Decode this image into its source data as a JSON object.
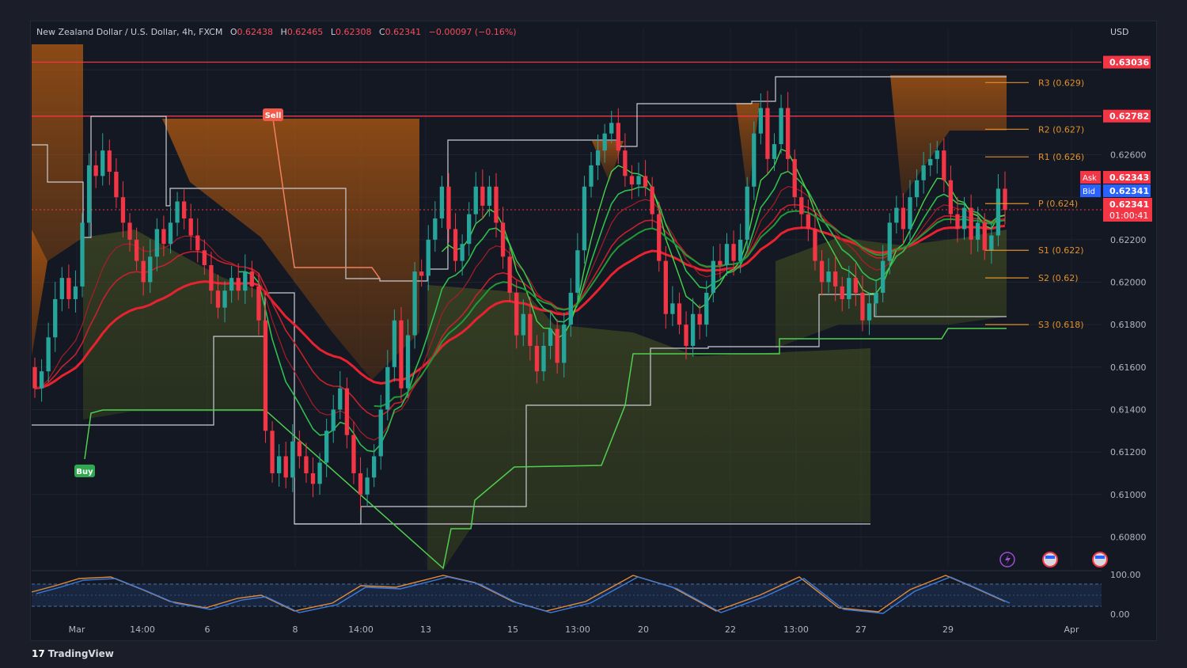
{
  "header": {
    "symbol": "New Zealand Dollar / U.S. Dollar, 4h, FXCM",
    "open_label": "O",
    "open": "0.62438",
    "high_label": "H",
    "high": "0.62465",
    "low_label": "L",
    "low": "0.62308",
    "close_label": "C",
    "close": "0.62341",
    "change": "−0.00097 (−0.16%)"
  },
  "currency": "USD",
  "brand": "TradingView",
  "colors": {
    "up": "#26a69a",
    "down": "#f23645",
    "resistance": "#f23645",
    "pivot": "#e0902a",
    "green": "#2fbf4f"
  },
  "chart_data": {
    "type": "candlestick",
    "ylim": [
      0.6066,
      0.6312
    ],
    "price_ticks": [
      "0.60800",
      "0.61000",
      "0.61200",
      "0.61400",
      "0.61600",
      "0.61800",
      "0.62000",
      "0.62200",
      "0.62600"
    ],
    "x_ticks": [
      "Mar",
      "14:00",
      "6",
      "8",
      "14:00",
      "13",
      "15",
      "13:00",
      "20",
      "22",
      "13:00",
      "27",
      "29",
      "Apr"
    ],
    "price_tags": [
      {
        "label": "0.63036",
        "value": 0.63036,
        "color": "#f23645"
      },
      {
        "label": "0.62782",
        "value": 0.62782,
        "color": "#f23645"
      },
      {
        "label": "Ask",
        "text": "0.62343",
        "color": "#f23645"
      },
      {
        "label": "Bid",
        "text": "0.62341",
        "color": "#2962ff"
      },
      {
        "label": "0.62341",
        "text": "01:00:41",
        "color": "#f23645"
      }
    ],
    "horizontal_lines": [
      {
        "value": 0.63036,
        "color": "#f23645"
      },
      {
        "value": 0.62782,
        "color": "#f23645"
      }
    ],
    "pivots": [
      {
        "label": "R3 (0.629)",
        "value": 0.6294
      },
      {
        "label": "R2 (0.627)",
        "value": 0.6272
      },
      {
        "label": "R1 (0.626)",
        "value": 0.6259
      },
      {
        "label": "P (0.624)",
        "value": 0.6237
      },
      {
        "label": "S1 (0.622)",
        "value": 0.6215
      },
      {
        "label": "S2 (0.62)",
        "value": 0.6202
      },
      {
        "label": "S3 (0.618)",
        "value": 0.618
      }
    ],
    "signals": [
      {
        "label": "Buy",
        "type": "buy"
      },
      {
        "label": "Sell",
        "type": "sell"
      }
    ],
    "candles": [
      [
        0.616,
        0.615
      ],
      [
        0.615,
        0.6158
      ],
      [
        0.6158,
        0.6174
      ],
      [
        0.6174,
        0.6192
      ],
      [
        0.6192,
        0.6202
      ],
      [
        0.6202,
        0.6192
      ],
      [
        0.6192,
        0.6198
      ],
      [
        0.6198,
        0.6228
      ],
      [
        0.6228,
        0.6255
      ],
      [
        0.6255,
        0.625
      ],
      [
        0.625,
        0.6262
      ],
      [
        0.6262,
        0.6252
      ],
      [
        0.6252,
        0.624
      ],
      [
        0.624,
        0.6228
      ],
      [
        0.6228,
        0.622
      ],
      [
        0.622,
        0.621
      ],
      [
        0.621,
        0.62
      ],
      [
        0.62,
        0.6212
      ],
      [
        0.6212,
        0.6225
      ],
      [
        0.6225,
        0.6218
      ],
      [
        0.6218,
        0.6228
      ],
      [
        0.6228,
        0.6238
      ],
      [
        0.6238,
        0.623
      ],
      [
        0.623,
        0.6222
      ],
      [
        0.6222,
        0.6215
      ],
      [
        0.6215,
        0.6208
      ],
      [
        0.6208,
        0.6196
      ],
      [
        0.6196,
        0.6188
      ],
      [
        0.6188,
        0.6196
      ],
      [
        0.6196,
        0.6202
      ],
      [
        0.6202,
        0.6196
      ],
      [
        0.6196,
        0.6205
      ],
      [
        0.6205,
        0.6198
      ],
      [
        0.6198,
        0.6182
      ],
      [
        0.6182,
        0.613
      ],
      [
        0.613,
        0.611
      ],
      [
        0.611,
        0.6118
      ],
      [
        0.6118,
        0.6108
      ],
      [
        0.6108,
        0.6125
      ],
      [
        0.6125,
        0.6118
      ],
      [
        0.6118,
        0.611
      ],
      [
        0.611,
        0.6105
      ],
      [
        0.6105,
        0.6115
      ],
      [
        0.6115,
        0.613
      ],
      [
        0.613,
        0.614
      ],
      [
        0.614,
        0.615
      ],
      [
        0.615,
        0.6128
      ],
      [
        0.6128,
        0.611
      ],
      [
        0.611,
        0.61
      ],
      [
        0.61,
        0.6108
      ],
      [
        0.6108,
        0.6118
      ],
      [
        0.6118,
        0.614
      ],
      [
        0.614,
        0.616
      ],
      [
        0.616,
        0.6182
      ],
      [
        0.6182,
        0.615
      ],
      [
        0.615,
        0.6175
      ],
      [
        0.6175,
        0.6205
      ],
      [
        0.6205,
        0.6203
      ],
      [
        0.6203,
        0.622
      ],
      [
        0.622,
        0.623
      ],
      [
        0.623,
        0.6245
      ],
      [
        0.6245,
        0.6225
      ],
      [
        0.6225,
        0.621
      ],
      [
        0.621,
        0.6218
      ],
      [
        0.6218,
        0.6232
      ],
      [
        0.6232,
        0.6245
      ],
      [
        0.6245,
        0.6236
      ],
      [
        0.6236,
        0.6245
      ],
      [
        0.6245,
        0.6228
      ],
      [
        0.6228,
        0.6212
      ],
      [
        0.6212,
        0.6195
      ],
      [
        0.6195,
        0.6175
      ],
      [
        0.6175,
        0.6185
      ],
      [
        0.6185,
        0.617
      ],
      [
        0.617,
        0.6158
      ],
      [
        0.6158,
        0.617
      ],
      [
        0.617,
        0.6178
      ],
      [
        0.6178,
        0.6162
      ],
      [
        0.6162,
        0.618
      ],
      [
        0.618,
        0.6195
      ],
      [
        0.6195,
        0.6215
      ],
      [
        0.6215,
        0.6245
      ],
      [
        0.6245,
        0.6255
      ],
      [
        0.6255,
        0.6262
      ],
      [
        0.6262,
        0.627
      ],
      [
        0.627,
        0.6275
      ],
      [
        0.6275,
        0.6262
      ],
      [
        0.6262,
        0.625
      ],
      [
        0.625,
        0.6246
      ],
      [
        0.6246,
        0.625
      ],
      [
        0.625,
        0.6245
      ],
      [
        0.6245,
        0.6232
      ],
      [
        0.6232,
        0.621
      ],
      [
        0.621,
        0.6185
      ],
      [
        0.6185,
        0.619
      ],
      [
        0.619,
        0.618
      ],
      [
        0.618,
        0.617
      ],
      [
        0.617,
        0.6185
      ],
      [
        0.6185,
        0.618
      ],
      [
        0.618,
        0.6195
      ],
      [
        0.6195,
        0.621
      ],
      [
        0.621,
        0.6208
      ],
      [
        0.6208,
        0.6218
      ],
      [
        0.6218,
        0.621
      ],
      [
        0.621,
        0.622
      ],
      [
        0.622,
        0.6245
      ],
      [
        0.6245,
        0.627
      ],
      [
        0.627,
        0.6282
      ],
      [
        0.6282,
        0.6258
      ],
      [
        0.6258,
        0.6265
      ],
      [
        0.6265,
        0.6282
      ],
      [
        0.6282,
        0.6258
      ],
      [
        0.6258,
        0.624
      ],
      [
        0.624,
        0.6232
      ],
      [
        0.6232,
        0.6225
      ],
      [
        0.6225,
        0.621
      ],
      [
        0.621,
        0.62
      ],
      [
        0.62,
        0.6205
      ],
      [
        0.6205,
        0.6198
      ],
      [
        0.6198,
        0.6192
      ],
      [
        0.6192,
        0.6202
      ],
      [
        0.6202,
        0.6195
      ],
      [
        0.6195,
        0.6182
      ],
      [
        0.6182,
        0.619
      ],
      [
        0.619,
        0.6195
      ],
      [
        0.6195,
        0.621
      ],
      [
        0.621,
        0.6228
      ],
      [
        0.6228,
        0.6235
      ],
      [
        0.6235,
        0.6225
      ],
      [
        0.6225,
        0.624
      ],
      [
        0.624,
        0.6248
      ],
      [
        0.6248,
        0.6255
      ],
      [
        0.6255,
        0.6258
      ],
      [
        0.6258,
        0.6262
      ],
      [
        0.6262,
        0.6248
      ],
      [
        0.6248,
        0.6232
      ],
      [
        0.6232,
        0.6225
      ],
      [
        0.6225,
        0.6235
      ],
      [
        0.6235,
        0.622
      ],
      [
        0.622,
        0.6228
      ],
      [
        0.6228,
        0.6215
      ],
      [
        0.6215,
        0.6222
      ],
      [
        0.6222,
        0.6244
      ],
      [
        0.6244,
        0.6234
      ]
    ],
    "oscillator": {
      "ticks": [
        "100.00",
        "0.00"
      ]
    }
  }
}
